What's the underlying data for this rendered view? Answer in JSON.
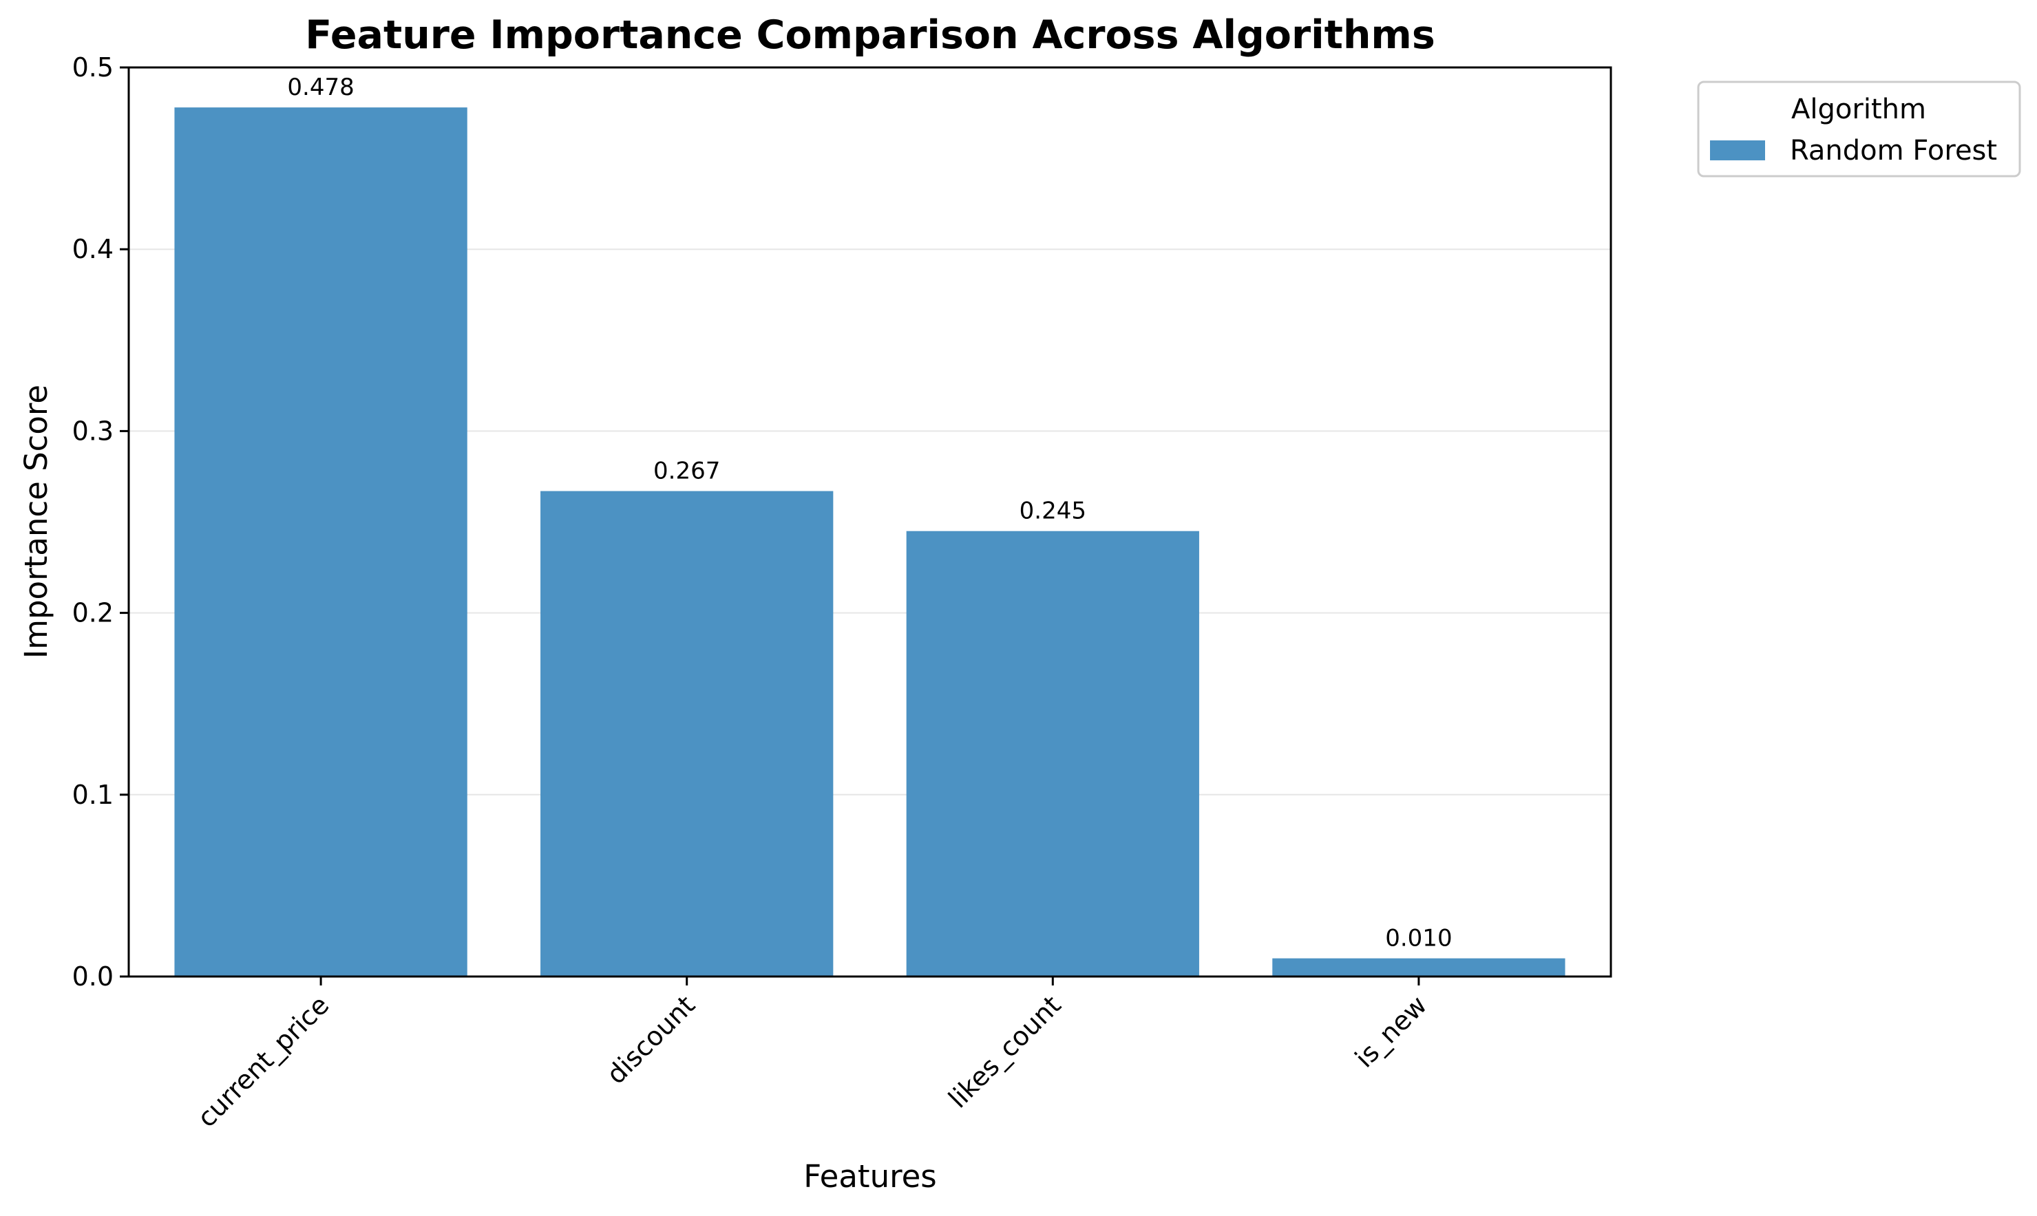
{
  "chart_data": {
    "type": "bar",
    "title": "Feature Importance Comparison Across Algorithms",
    "xlabel": "Features",
    "ylabel": "Importance Score",
    "categories": [
      "current_price",
      "discount",
      "likes_count",
      "is_new"
    ],
    "series": [
      {
        "name": "Random Forest",
        "values": [
          0.478,
          0.267,
          0.245,
          0.01
        ],
        "color": "#4c92c3"
      }
    ],
    "data_labels": [
      "0.478",
      "0.267",
      "0.245",
      "0.010"
    ],
    "ylim": [
      0,
      0.5
    ],
    "yticks": [
      0.0,
      0.1,
      0.2,
      0.3,
      0.4,
      0.5
    ],
    "ytick_labels": [
      "0.0",
      "0.1",
      "0.2",
      "0.3",
      "0.4",
      "0.5"
    ],
    "grid": "y",
    "legend": {
      "title": "Algorithm",
      "placement": "outside-top-right"
    }
  }
}
